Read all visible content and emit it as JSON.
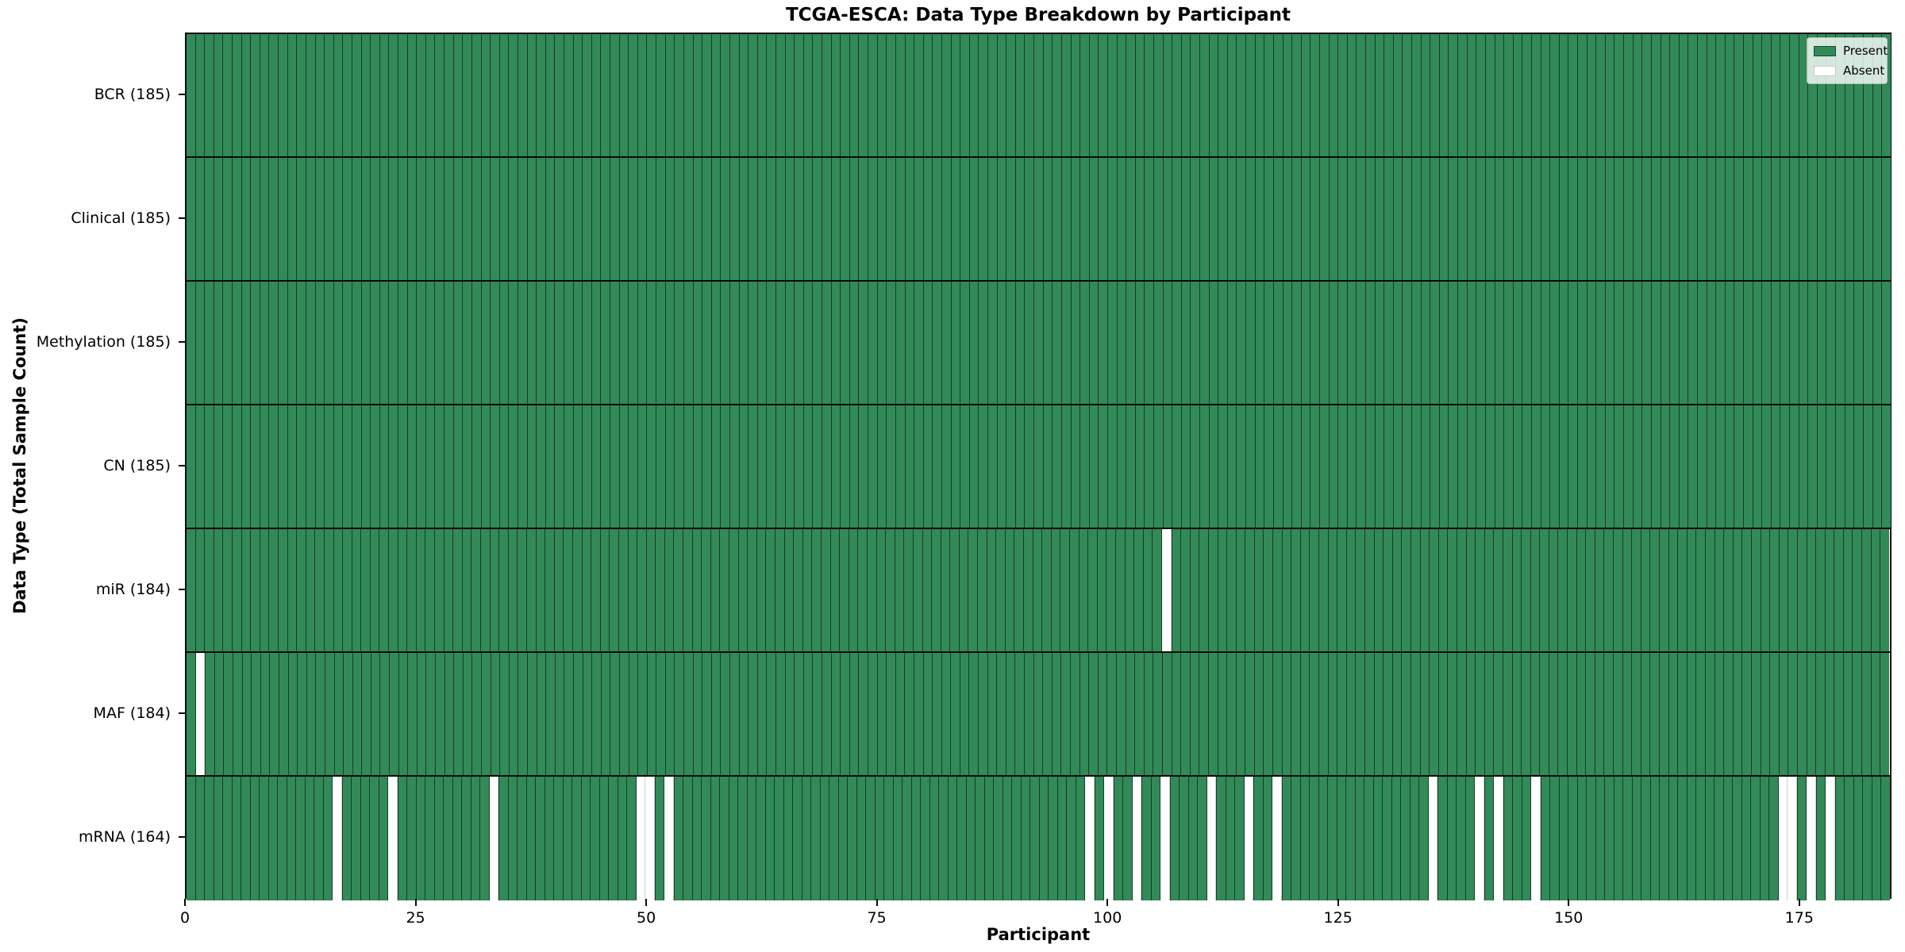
{
  "title": "TCGA-ESCA: Data Type Breakdown by Participant",
  "xlabel": "Participant",
  "ylabel": "Data Type (Total Sample Count)",
  "legend": {
    "present_label": "Present",
    "absent_label": "Absent"
  },
  "colors": {
    "present": "#318a58",
    "absent": "#ffffff",
    "cell_edge": "rgba(0,0,0,0.55)",
    "absent_edge": "#cfcfcf",
    "spine": "#0a0a0a"
  },
  "chart_data": {
    "type": "heatmap",
    "x_axis": {
      "label": "Participant",
      "tick_values": [
        0,
        25,
        50,
        75,
        100,
        125,
        150,
        175
      ],
      "range": [
        0,
        185
      ]
    },
    "n_participants": 185,
    "legend_position": "upper right",
    "rows": [
      {
        "name": "BCR",
        "label": "BCR (185)",
        "total_present": 185,
        "absent_participants": []
      },
      {
        "name": "Clinical",
        "label": "Clinical (185)",
        "total_present": 185,
        "absent_participants": []
      },
      {
        "name": "Methylation",
        "label": "Methylation (185)",
        "total_present": 185,
        "absent_participants": []
      },
      {
        "name": "CN",
        "label": "CN (185)",
        "total_present": 185,
        "absent_participants": []
      },
      {
        "name": "miR",
        "label": "miR (184)",
        "total_present": 184,
        "absent_participants": [
          106
        ]
      },
      {
        "name": "MAF",
        "label": "MAF (184)",
        "total_present": 184,
        "absent_participants": [
          1
        ]
      },
      {
        "name": "mRNA",
        "label": "mRNA (164)",
        "total_present": 164,
        "absent_participants": [
          16,
          22,
          33,
          49,
          50,
          52,
          98,
          100,
          103,
          106,
          111,
          115,
          118,
          135,
          140,
          142,
          146,
          173,
          174,
          176,
          178
        ]
      }
    ]
  }
}
